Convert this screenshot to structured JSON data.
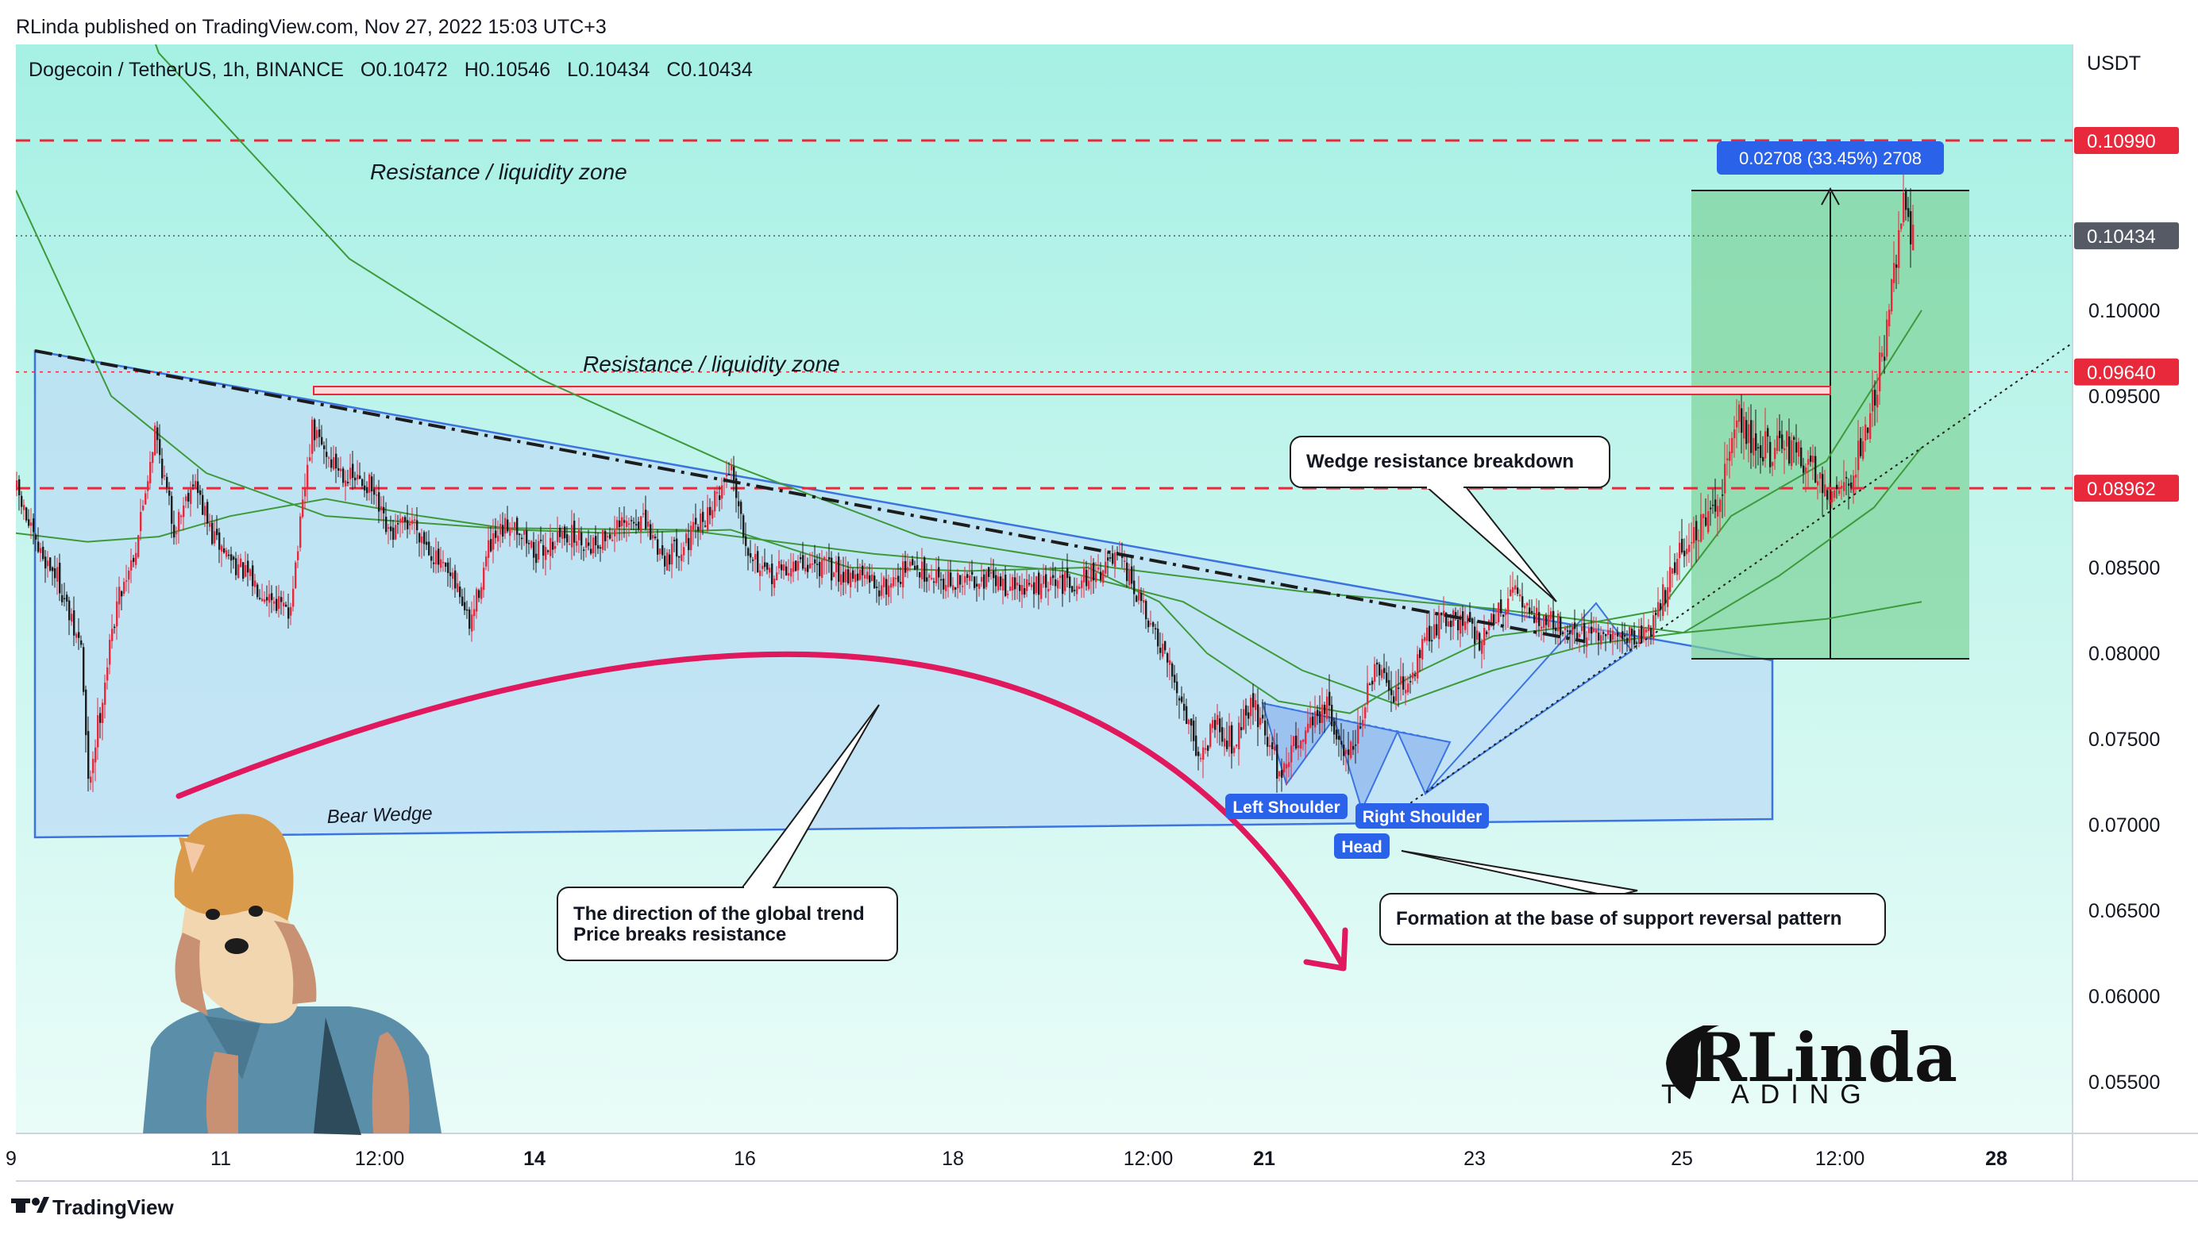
{
  "header": {
    "publisher": "RLinda published on TradingView.com, Nov 27, 2022 15:03 UTC+3",
    "symbol": "Dogecoin / TetherUS, 1h, BINANCE",
    "ohlc": {
      "open_label": "O",
      "open": "0.10472",
      "high_label": "H",
      "high": "0.10546",
      "low_label": "L",
      "low": "0.10434",
      "close_label": "C",
      "close": "0.10434"
    },
    "currency": "USDT"
  },
  "footer": {
    "brand": "TradingView",
    "logo_icon": "tradingview-logo-icon"
  },
  "colors": {
    "bg_top": "#a6f0e4",
    "bg_bottom": "#eafcf8",
    "up_candle": "#e8293c",
    "down_candle": "#1c1c1c",
    "ma_color": "#3d9a3a",
    "wedge_fill": "#bcdcf5",
    "wedge_stroke": "#3b74e0",
    "target_fill": "#7fd39a",
    "resistance": "#e8293c",
    "arc": "#e0195f",
    "chip": "#2a62ea",
    "price_tag_red": "#e8293c",
    "price_tag_dark": "#555a64"
  },
  "chart_data": {
    "type": "candlestick",
    "symbol": "DOGE/USDT",
    "timeframe": "1h",
    "x_ticks": [
      "9",
      "11",
      "12:00",
      "14",
      "16",
      "18",
      "12:00",
      "21",
      "23",
      "25",
      "12:00",
      "28"
    ],
    "x_ticks_bold": [
      "14",
      "21",
      "28"
    ],
    "y_ticks": [
      "0.10000",
      "0.09500",
      "0.08500",
      "0.08000",
      "0.07500",
      "0.07000",
      "0.06500",
      "0.06000",
      "0.05500"
    ],
    "ylim": [
      0.052,
      0.1155
    ],
    "price_tags": [
      {
        "label": "0.10990",
        "value": 0.1099,
        "style": "red"
      },
      {
        "label": "0.10434",
        "value": 0.10434,
        "style": "dark"
      },
      {
        "label": "0.09640",
        "value": 0.0964,
        "style": "red"
      },
      {
        "label": "0.08962",
        "value": 0.08962,
        "style": "red"
      }
    ],
    "current_price": 0.10434,
    "resistance_levels": [
      0.1099,
      0.0964,
      0.08962
    ],
    "zones": [
      {
        "label": "Resistance / liquidity zone",
        "value": 0.1099
      },
      {
        "label": "Resistance / liquidity zone",
        "value": 0.0964
      }
    ],
    "annotations": {
      "bear_wedge": "Bear Wedge",
      "global_trend_line1": "The direction of the global trend",
      "global_trend_line2": "Price breaks resistance",
      "wedge_breakdown": "Wedge resistance breakdown",
      "formation": "Formation at the base of support reversal pattern",
      "left_shoulder": "Left Shoulder",
      "head": "Head",
      "right_shoulder": "Right Shoulder"
    },
    "measure": {
      "label": "0.02708 (33.45%) 2708",
      "from": 0.0809,
      "to": 0.1079
    },
    "path": [
      [
        0,
        0.0895
      ],
      [
        8,
        0.0862
      ],
      [
        17,
        0.0845
      ],
      [
        24,
        0.0812
      ],
      [
        27,
        0.0805
      ],
      [
        30,
        0.0722
      ],
      [
        34,
        0.0758
      ],
      [
        42,
        0.083
      ],
      [
        50,
        0.0862
      ],
      [
        58,
        0.093
      ],
      [
        66,
        0.0872
      ],
      [
        74,
        0.0902
      ],
      [
        82,
        0.0868
      ],
      [
        90,
        0.0855
      ],
      [
        100,
        0.084
      ],
      [
        108,
        0.0832
      ],
      [
        114,
        0.0822
      ],
      [
        118,
        0.0862
      ],
      [
        124,
        0.093
      ],
      [
        132,
        0.0912
      ],
      [
        140,
        0.0902
      ],
      [
        148,
        0.0898
      ],
      [
        156,
        0.0868
      ],
      [
        166,
        0.0878
      ],
      [
        178,
        0.085
      ],
      [
        186,
        0.0835
      ],
      [
        190,
        0.0815
      ],
      [
        198,
        0.086
      ],
      [
        208,
        0.0878
      ],
      [
        218,
        0.0858
      ],
      [
        230,
        0.087
      ],
      [
        242,
        0.0864
      ],
      [
        252,
        0.0872
      ],
      [
        262,
        0.0878
      ],
      [
        272,
        0.0856
      ],
      [
        282,
        0.0866
      ],
      [
        292,
        0.0886
      ],
      [
        300,
        0.091
      ],
      [
        306,
        0.0866
      ],
      [
        314,
        0.0844
      ],
      [
        324,
        0.085
      ],
      [
        334,
        0.0852
      ],
      [
        344,
        0.0848
      ],
      [
        354,
        0.0845
      ],
      [
        364,
        0.0838
      ],
      [
        374,
        0.085
      ],
      [
        384,
        0.0847
      ],
      [
        394,
        0.084
      ],
      [
        404,
        0.0845
      ],
      [
        414,
        0.084
      ],
      [
        424,
        0.0838
      ],
      [
        434,
        0.084
      ],
      [
        444,
        0.0842
      ],
      [
        454,
        0.0848
      ],
      [
        462,
        0.0855
      ],
      [
        470,
        0.0835
      ],
      [
        476,
        0.0815
      ],
      [
        484,
        0.079
      ],
      [
        492,
        0.0762
      ],
      [
        497,
        0.0738
      ],
      [
        503,
        0.0762
      ],
      [
        510,
        0.0748
      ],
      [
        518,
        0.0772
      ],
      [
        524,
        0.0755
      ],
      [
        530,
        0.073
      ],
      [
        535,
        0.0742
      ],
      [
        542,
        0.076
      ],
      [
        550,
        0.0768
      ],
      [
        556,
        0.0742
      ],
      [
        562,
        0.075
      ],
      [
        570,
        0.079
      ],
      [
        578,
        0.0776
      ],
      [
        585,
        0.0785
      ],
      [
        592,
        0.081
      ],
      [
        600,
        0.0822
      ],
      [
        608,
        0.0818
      ],
      [
        614,
        0.0808
      ],
      [
        622,
        0.0825
      ],
      [
        630,
        0.0835
      ],
      [
        636,
        0.0822
      ],
      [
        646,
        0.0818
      ],
      [
        656,
        0.0812
      ],
      [
        664,
        0.0808
      ],
      [
        672,
        0.081
      ],
      [
        680,
        0.081
      ],
      [
        686,
        0.0815
      ],
      [
        692,
        0.0836
      ],
      [
        698,
        0.086
      ],
      [
        704,
        0.0868
      ],
      [
        710,
        0.0875
      ],
      [
        716,
        0.09
      ],
      [
        722,
        0.094
      ],
      [
        728,
        0.0925
      ],
      [
        736,
        0.0918
      ],
      [
        744,
        0.092
      ],
      [
        752,
        0.091
      ],
      [
        760,
        0.0898
      ],
      [
        766,
        0.0895
      ],
      [
        772,
        0.091
      ],
      [
        778,
        0.094
      ],
      [
        784,
        0.098
      ],
      [
        788,
        0.102
      ],
      [
        792,
        0.106
      ],
      [
        796,
        0.1043
      ]
    ],
    "moving_averages": [
      {
        "name": "ma-long",
        "points": [
          [
            0,
            0.138
          ],
          [
            60,
            0.115
          ],
          [
            140,
            0.103
          ],
          [
            220,
            0.096
          ],
          [
            300,
            0.091
          ],
          [
            380,
            0.0868
          ],
          [
            460,
            0.085
          ],
          [
            540,
            0.0836
          ],
          [
            620,
            0.0826
          ],
          [
            700,
            0.0812
          ],
          [
            760,
            0.082
          ],
          [
            800,
            0.083
          ]
        ]
      },
      {
        "name": "ma-mid",
        "points": [
          [
            0,
            0.107
          ],
          [
            40,
            0.095
          ],
          [
            80,
            0.0905
          ],
          [
            130,
            0.088
          ],
          [
            200,
            0.0873
          ],
          [
            280,
            0.0872
          ],
          [
            360,
            0.0858
          ],
          [
            440,
            0.0848
          ],
          [
            490,
            0.083
          ],
          [
            540,
            0.079
          ],
          [
            580,
            0.077
          ],
          [
            620,
            0.079
          ],
          [
            660,
            0.0805
          ],
          [
            700,
            0.0812
          ],
          [
            740,
            0.0845
          ],
          [
            780,
            0.0885
          ],
          [
            800,
            0.092
          ]
        ]
      },
      {
        "name": "ma-short",
        "points": [
          [
            0,
            0.087
          ],
          [
            30,
            0.0865
          ],
          [
            60,
            0.0868
          ],
          [
            90,
            0.088
          ],
          [
            130,
            0.089
          ],
          [
            170,
            0.088
          ],
          [
            210,
            0.0872
          ],
          [
            250,
            0.087
          ],
          [
            300,
            0.0872
          ],
          [
            350,
            0.085
          ],
          [
            400,
            0.0848
          ],
          [
            450,
            0.085
          ],
          [
            480,
            0.083
          ],
          [
            500,
            0.08
          ],
          [
            530,
            0.0772
          ],
          [
            560,
            0.0765
          ],
          [
            590,
            0.079
          ],
          [
            620,
            0.081
          ],
          [
            650,
            0.0815
          ],
          [
            690,
            0.0825
          ],
          [
            720,
            0.088
          ],
          [
            760,
            0.0912
          ],
          [
            800,
            0.1
          ]
        ]
      }
    ]
  }
}
